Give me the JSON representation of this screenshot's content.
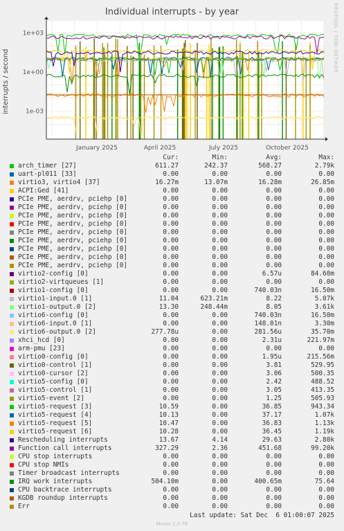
{
  "title": "Individual interrupts - by year",
  "ylabel": "interrupts / second",
  "rrdtool": "RRDTOOL / TOBI OETIKER",
  "columns": [
    "Cur:",
    "Min:",
    "Avg:",
    "Max:"
  ],
  "footer": "Last update: Sat Dec  6 01:00:07 2025",
  "munin": "Munin 2.0.76",
  "chart_data": {
    "type": "line",
    "title": "Individual interrupts - by year",
    "ylabel": "interrupts / second",
    "yscale": "log",
    "yticks": [
      "1e+03",
      "1e+00",
      "1e-03"
    ],
    "ytick_values": [
      1000,
      1,
      0.001
    ],
    "xticks": [
      "January 2025",
      "April 2025",
      "July 2025",
      "October 2025"
    ],
    "grid": true,
    "series": [
      {
        "name": "arch_timer [27]",
        "color": "#00cc00",
        "cur": "611.27",
        "min": "242.37",
        "avg": "568.27",
        "max": "2.79k",
        "level": 600
      },
      {
        "name": "uart-pl011 [33]",
        "color": "#0066b3",
        "cur": "0.00",
        "min": "0.00",
        "avg": "0.00",
        "max": "0.00",
        "level": null
      },
      {
        "name": "virtio3, virtio4 [37]",
        "color": "#ff8000",
        "cur": "16.27m",
        "min": "13.07m",
        "avg": "16.28m",
        "max": "26.85m",
        "level": 0.016
      },
      {
        "name": "ACPI:Ged [41]",
        "color": "#ffcc00",
        "cur": "0.00",
        "min": "0.00",
        "avg": "0.00",
        "max": "0.00",
        "level": null
      },
      {
        "name": "PCIe PME, aerdrv, pciehp [0]",
        "color": "#330099",
        "cur": "0.00",
        "min": "0.00",
        "avg": "0.00",
        "max": "0.00",
        "level": null
      },
      {
        "name": "PCIe PME, aerdrv, pciehp [0]",
        "color": "#990099",
        "cur": "0.00",
        "min": "0.00",
        "avg": "0.00",
        "max": "0.00",
        "level": null
      },
      {
        "name": "PCIe PME, aerdrv, pciehp [0]",
        "color": "#ccff00",
        "cur": "0.00",
        "min": "0.00",
        "avg": "0.00",
        "max": "0.00",
        "level": null
      },
      {
        "name": "PCIe PME, aerdrv, pciehp [0]",
        "color": "#ff0000",
        "cur": "0.00",
        "min": "0.00",
        "avg": "0.00",
        "max": "0.00",
        "level": null
      },
      {
        "name": "PCIe PME, aerdrv, pciehp [0]",
        "color": "#808080",
        "cur": "0.00",
        "min": "0.00",
        "avg": "0.00",
        "max": "0.00",
        "level": null
      },
      {
        "name": "PCIe PME, aerdrv, pciehp [0]",
        "color": "#008f00",
        "cur": "0.00",
        "min": "0.00",
        "avg": "0.00",
        "max": "0.00",
        "level": null
      },
      {
        "name": "PCIe PME, aerdrv, pciehp [0]",
        "color": "#00487d",
        "cur": "0.00",
        "min": "0.00",
        "avg": "0.00",
        "max": "0.00",
        "level": null
      },
      {
        "name": "PCIe PME, aerdrv, pciehp [0]",
        "color": "#b35a00",
        "cur": "0.00",
        "min": "0.00",
        "avg": "0.00",
        "max": "0.00",
        "level": null
      },
      {
        "name": "PCIe PME, aerdrv, pciehp [0]",
        "color": "#b38f00",
        "cur": "0.00",
        "min": "0.00",
        "avg": "0.00",
        "max": "0.00",
        "level": null
      },
      {
        "name": "virtio2-config [0]",
        "color": "#6b006b",
        "cur": "0.00",
        "min": "0.00",
        "avg": "6.57u",
        "max": "84.60m",
        "level": null
      },
      {
        "name": "virtio2-virtqueues [1]",
        "color": "#8fb300",
        "cur": "0.00",
        "min": "0.00",
        "avg": "0.00",
        "max": "0.00",
        "level": null
      },
      {
        "name": "virtio1-config [0]",
        "color": "#b30000",
        "cur": "0.00",
        "min": "0.00",
        "avg": "740.03n",
        "max": "16.50m",
        "level": null
      },
      {
        "name": "virtio1-input.0 [1]",
        "color": "#bebebe",
        "cur": "11.04",
        "min": "623.21m",
        "avg": "8.22",
        "max": "5.07k",
        "level": 8
      },
      {
        "name": "virtio1-output.0 [2]",
        "color": "#80ff80",
        "cur": "13.30",
        "min": "248.44m",
        "avg": "8.05",
        "max": "3.61k",
        "level": 10
      },
      {
        "name": "virtio6-config [0]",
        "color": "#80c9ff",
        "cur": "0.00",
        "min": "0.00",
        "avg": "740.03n",
        "max": "16.50m",
        "level": null
      },
      {
        "name": "virtio6-input.0 [1]",
        "color": "#ffc080",
        "cur": "0.00",
        "min": "0.00",
        "avg": "148.01n",
        "max": "3.30m",
        "level": null
      },
      {
        "name": "virtio6-output.0 [2]",
        "color": "#ffe680",
        "cur": "277.78u",
        "min": "0.00",
        "avg": "281.56u",
        "max": "35.70m",
        "level": 0.0003
      },
      {
        "name": "xhci_hcd [0]",
        "color": "#aa80ff",
        "cur": "0.00",
        "min": "0.00",
        "avg": "2.31u",
        "max": "221.97m",
        "level": null
      },
      {
        "name": "arm-pmu [23]",
        "color": "#ee00cc",
        "cur": "0.00",
        "min": "0.00",
        "avg": "0.00",
        "max": "0.00",
        "level": null
      },
      {
        "name": "virtio0-config [0]",
        "color": "#ff8080",
        "cur": "0.00",
        "min": "0.00",
        "avg": "1.95u",
        "max": "215.56m",
        "level": null
      },
      {
        "name": "virtio0-control [1]",
        "color": "#666600",
        "cur": "0.00",
        "min": "0.00",
        "avg": "3.81",
        "max": "529.95",
        "level": null
      },
      {
        "name": "virtio0-cursor [2]",
        "color": "#ffbfff",
        "cur": "0.00",
        "min": "0.00",
        "avg": "3.06",
        "max": "500.35",
        "level": null
      },
      {
        "name": "virtio5-config [0]",
        "color": "#00ffcc",
        "cur": "0.00",
        "min": "0.00",
        "avg": "2.42",
        "max": "488.52",
        "level": null
      },
      {
        "name": "virtio5-control [1]",
        "color": "#cc6699",
        "cur": "0.00",
        "min": "0.00",
        "avg": "3.05",
        "max": "413.35",
        "level": null
      },
      {
        "name": "virtio5-event [2]",
        "color": "#999900",
        "cur": "0.00",
        "min": "0.00",
        "avg": "1.25",
        "max": "505.93",
        "level": null
      },
      {
        "name": "virtio5-request [3]",
        "color": "#00cc00",
        "cur": "10.59",
        "min": "0.00",
        "avg": "36.85",
        "max": "943.34",
        "level": 10
      },
      {
        "name": "virtio5-request [4]",
        "color": "#0066b3",
        "cur": "10.13",
        "min": "0.00",
        "avg": "37.17",
        "max": "1.07k",
        "level": 10
      },
      {
        "name": "virtio5-request [5]",
        "color": "#ff8000",
        "cur": "10.47",
        "min": "0.00",
        "avg": "36.83",
        "max": "1.13k",
        "level": 10
      },
      {
        "name": "virtio5-request [6]",
        "color": "#ffcc00",
        "cur": "10.28",
        "min": "0.00",
        "avg": "36.45",
        "max": "1.19k",
        "level": 40
      },
      {
        "name": "Rescheduling interrupts",
        "color": "#330099",
        "cur": "13.67",
        "min": "4.14",
        "avg": "29.63",
        "max": "2.80k",
        "level": 30
      },
      {
        "name": "Function call interrupts",
        "color": "#990099",
        "cur": "327.29",
        "min": "2.36",
        "avg": "451.68",
        "max": "99.20k",
        "level": 450
      },
      {
        "name": "CPU stop interrupts",
        "color": "#ccff00",
        "cur": "0.00",
        "min": "0.00",
        "avg": "0.00",
        "max": "0.00",
        "level": null
      },
      {
        "name": "CPU stop NMIs",
        "color": "#ff0000",
        "cur": "0.00",
        "min": "0.00",
        "avg": "0.00",
        "max": "0.00",
        "level": null
      },
      {
        "name": "Timer broadcast interrupts",
        "color": "#808080",
        "cur": "0.00",
        "min": "0.00",
        "avg": "0.00",
        "max": "0.00",
        "level": null
      },
      {
        "name": "IRQ work interrupts",
        "color": "#008f00",
        "cur": "504.10m",
        "min": "0.00",
        "avg": "400.65m",
        "max": "75.64",
        "level": 0.5
      },
      {
        "name": "CPU backtrace interrupts",
        "color": "#00487d",
        "cur": "0.00",
        "min": "0.00",
        "avg": "0.00",
        "max": "0.00",
        "level": null
      },
      {
        "name": "KGDB roundup interrupts",
        "color": "#b35a00",
        "cur": "0.00",
        "min": "0.00",
        "avg": "0.00",
        "max": "0.00",
        "level": null
      },
      {
        "name": "Err",
        "color": "#b38f00",
        "cur": "0.00",
        "min": "0.00",
        "avg": "0.00",
        "max": "0.00",
        "level": null
      }
    ]
  }
}
